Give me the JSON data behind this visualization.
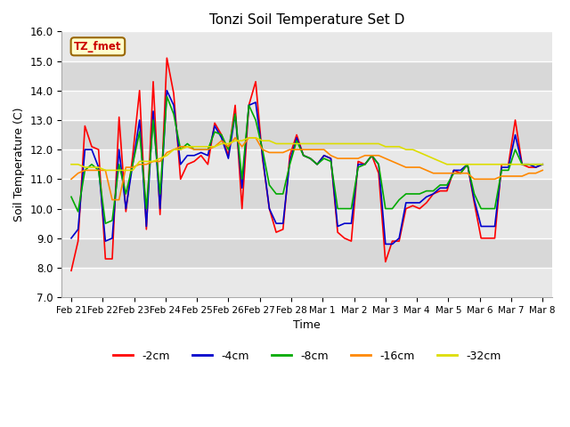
{
  "title": "Tonzi Soil Temperature Set D",
  "xlabel": "Time",
  "ylabel": "Soil Temperature (C)",
  "ylim": [
    7.0,
    16.0
  ],
  "yticks": [
    7.0,
    8.0,
    9.0,
    10.0,
    11.0,
    12.0,
    13.0,
    14.0,
    15.0,
    16.0
  ],
  "xtick_labels": [
    "Feb 21",
    "Feb 22",
    "Feb 23",
    "Feb 24",
    "Feb 25",
    "Feb 26",
    "Feb 27",
    "Feb 28",
    "Mar 1",
    "Mar 2",
    "Mar 3",
    "Mar 4",
    "Mar 5",
    "Mar 6",
    "Mar 7",
    "Mar 8"
  ],
  "annotation_text": "TZ_fmet",
  "fig_facecolor": "#ffffff",
  "ax_facecolor": "#e8e8e8",
  "band_color": "#d8d8d8",
  "colors": {
    "-2cm": "#ff0000",
    "-4cm": "#0000cc",
    "-8cm": "#00aa00",
    "-16cm": "#ff8800",
    "-32cm": "#dddd00"
  },
  "series": {
    "-2cm": [
      7.9,
      8.9,
      12.8,
      12.1,
      12.0,
      8.3,
      8.3,
      13.1,
      9.9,
      11.8,
      14.0,
      9.3,
      14.3,
      9.8,
      15.1,
      13.9,
      11.0,
      11.5,
      11.6,
      11.8,
      11.5,
      12.9,
      12.5,
      11.8,
      13.5,
      10.0,
      13.5,
      14.3,
      11.7,
      10.0,
      9.2,
      9.3,
      11.8,
      12.5,
      11.8,
      11.7,
      11.5,
      11.8,
      11.7,
      9.2,
      9.0,
      8.9,
      11.6,
      11.5,
      11.8,
      11.2,
      8.2,
      8.9,
      8.9,
      10.0,
      10.1,
      10.0,
      10.2,
      10.5,
      10.6,
      10.6,
      11.3,
      11.2,
      11.5,
      10.2,
      9.0,
      9.0,
      9.0,
      11.5,
      11.5,
      13.0,
      11.5,
      11.4,
      11.4,
      11.5
    ],
    "-4cm": [
      9.0,
      9.3,
      12.0,
      12.0,
      11.4,
      8.9,
      9.0,
      12.0,
      10.0,
      11.5,
      13.0,
      9.4,
      13.3,
      10.0,
      14.0,
      13.5,
      11.5,
      11.8,
      11.8,
      11.9,
      11.8,
      12.8,
      12.4,
      11.7,
      13.2,
      10.7,
      13.5,
      13.6,
      11.8,
      10.0,
      9.5,
      9.5,
      11.6,
      12.4,
      11.8,
      11.7,
      11.5,
      11.8,
      11.7,
      9.4,
      9.5,
      9.5,
      11.5,
      11.5,
      11.8,
      11.5,
      8.8,
      8.8,
      9.0,
      10.2,
      10.2,
      10.2,
      10.4,
      10.5,
      10.7,
      10.7,
      11.3,
      11.3,
      11.5,
      10.3,
      9.4,
      9.4,
      9.4,
      11.4,
      11.4,
      12.5,
      11.5,
      11.5,
      11.4,
      11.5
    ],
    "-8cm": [
      10.4,
      9.9,
      11.3,
      11.5,
      11.3,
      9.5,
      9.6,
      11.5,
      10.5,
      11.5,
      12.6,
      10.0,
      13.0,
      10.5,
      13.8,
      13.2,
      12.0,
      12.2,
      12.0,
      12.0,
      12.0,
      12.6,
      12.5,
      12.0,
      13.2,
      11.0,
      13.5,
      13.0,
      12.0,
      10.8,
      10.5,
      10.5,
      11.5,
      12.3,
      11.8,
      11.7,
      11.5,
      11.7,
      11.6,
      10.0,
      10.0,
      10.0,
      11.4,
      11.5,
      11.8,
      11.5,
      10.0,
      10.0,
      10.3,
      10.5,
      10.5,
      10.5,
      10.6,
      10.6,
      10.8,
      10.8,
      11.2,
      11.2,
      11.5,
      10.5,
      10.0,
      10.0,
      10.0,
      11.3,
      11.3,
      12.0,
      11.5,
      11.5,
      11.5,
      11.5
    ],
    "-16cm": [
      11.0,
      11.2,
      11.3,
      11.3,
      11.3,
      11.3,
      10.3,
      10.3,
      11.4,
      11.4,
      11.5,
      11.5,
      11.6,
      11.6,
      11.9,
      12.0,
      12.1,
      12.1,
      12.0,
      12.0,
      12.0,
      12.1,
      12.3,
      12.1,
      12.4,
      12.1,
      12.4,
      12.4,
      12.0,
      11.9,
      11.9,
      11.9,
      12.0,
      12.0,
      12.0,
      12.0,
      12.0,
      12.0,
      11.8,
      11.7,
      11.7,
      11.7,
      11.7,
      11.8,
      11.8,
      11.8,
      11.7,
      11.6,
      11.5,
      11.4,
      11.4,
      11.4,
      11.3,
      11.2,
      11.2,
      11.2,
      11.2,
      11.2,
      11.2,
      11.0,
      11.0,
      11.0,
      11.0,
      11.1,
      11.1,
      11.1,
      11.1,
      11.2,
      11.2,
      11.3
    ],
    "-32cm": [
      11.5,
      11.5,
      11.4,
      11.4,
      11.4,
      11.3,
      11.3,
      11.3,
      11.3,
      11.3,
      11.6,
      11.6,
      11.6,
      11.7,
      11.8,
      12.0,
      12.0,
      12.1,
      12.1,
      12.1,
      12.1,
      12.1,
      12.2,
      12.2,
      12.3,
      12.3,
      12.4,
      12.4,
      12.3,
      12.3,
      12.2,
      12.2,
      12.2,
      12.2,
      12.2,
      12.2,
      12.2,
      12.2,
      12.2,
      12.2,
      12.2,
      12.2,
      12.2,
      12.2,
      12.2,
      12.2,
      12.1,
      12.1,
      12.1,
      12.0,
      12.0,
      11.9,
      11.8,
      11.7,
      11.6,
      11.5,
      11.5,
      11.5,
      11.5,
      11.5,
      11.5,
      11.5,
      11.5,
      11.5,
      11.5,
      11.5,
      11.5,
      11.5,
      11.5,
      11.5
    ]
  }
}
